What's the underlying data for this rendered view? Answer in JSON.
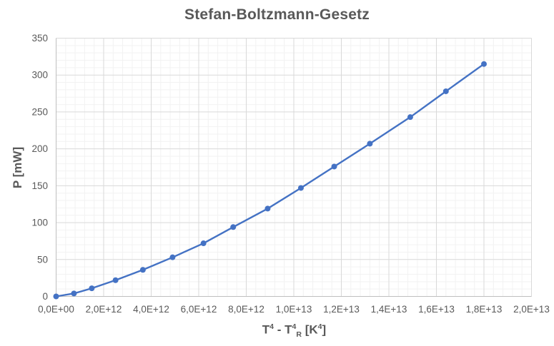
{
  "chart": {
    "title": "Stefan-Boltzmann-Gesetz",
    "y_axis_title": "P [mW]",
    "x_axis_title": {
      "t1": "T",
      "sup1": "4",
      "sep": " - ",
      "t2": "T",
      "sup2": "4",
      "sub2": "R",
      "open": " [K",
      "sup3": "4",
      "close": "]"
    }
  },
  "colors": {
    "series": "#4472C4",
    "grid_major": "#D9D9D9",
    "grid_minor": "#F2F2F2",
    "axis_line": "#BFBFBF",
    "text": "#595959"
  },
  "chart_data": {
    "type": "line",
    "title": "Stefan-Boltzmann-Gesetz",
    "xlabel": "T^4 - T^4_R [K^4]",
    "ylabel": "P [mW]",
    "xlim": [
      0,
      20000000000000.0
    ],
    "ylim": [
      0,
      350
    ],
    "grid": {
      "major": true,
      "minor": true
    },
    "legend": "none",
    "x_ticks": [
      "0,0E+00",
      "2,0E+12",
      "4,0E+12",
      "6,0E+12",
      "8,0E+12",
      "1,0E+13",
      "1,2E+13",
      "1,4E+13",
      "1,6E+13",
      "1,8E+13",
      "2,0E+13"
    ],
    "y_ticks": [
      "0",
      "50",
      "100",
      "150",
      "200",
      "250",
      "300",
      "350"
    ],
    "series": [
      {
        "color": "#4472C4",
        "marker": "circle",
        "x": [
          0,
          750000000000.0,
          1500000000000.0,
          2500000000000.0,
          3650000000000.0,
          4900000000000.0,
          6200000000000.0,
          7450000000000.0,
          8900000000000.0,
          10300000000000.0,
          11700000000000.0,
          13200000000000.0,
          14900000000000.0,
          16400000000000.0,
          18000000000000.0
        ],
        "y": [
          0,
          4,
          11,
          22,
          36,
          53,
          72,
          94,
          119,
          147,
          176,
          207,
          243,
          278,
          315
        ]
      }
    ]
  }
}
